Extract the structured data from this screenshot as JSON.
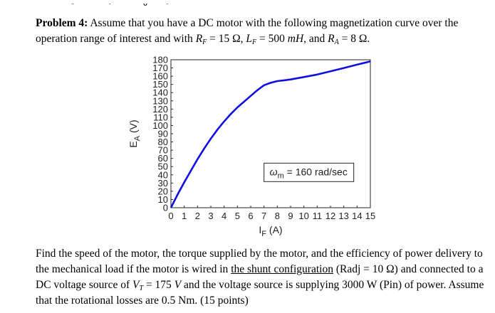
{
  "problem": {
    "label": "Problem 4:",
    "intro": "Assume that you have a DC motor with the following magnetization curve over the operation range of interest and with",
    "rf_sym": "R",
    "rf_sub": "F",
    "rf_val": " = 15 Ω,",
    "lf_sym": "L",
    "lf_sub": "F",
    "lf_val": " = 500 ",
    "lf_unit": "mH",
    "and": ", and",
    "ra_sym": "R",
    "ra_sub": "A",
    "ra_val": " = 8 Ω."
  },
  "question": {
    "t1": "Find the speed of the motor, the torque supplied by the motor, and the efficiency of power delivery to the mechanical load if the motor is wired in",
    "shunt": "the shunt configuration",
    "radj": " (Radj = 10 Ω) and connected to a DC voltage source of",
    "vt_sym": "V",
    "vt_sub": "T",
    "vt_val": " = 175 ",
    "vt_unit": "V",
    "t2": " and the voltage source is supplying 3000 W (Pin) of power. Assume that the rotational losses are 0.5 Nm. (15 points)"
  },
  "chart_data": {
    "type": "line",
    "x": [
      0,
      0.5,
      1,
      1.5,
      2,
      2.5,
      3,
      3.5,
      4,
      4.5,
      5,
      5.5,
      6,
      6.5,
      7,
      7.5,
      8,
      8.5,
      9,
      10,
      11,
      12,
      13,
      14,
      15
    ],
    "y": [
      0,
      16,
      31,
      45,
      59,
      72,
      84,
      95,
      105,
      114,
      122,
      129,
      136,
      143,
      149,
      152,
      154,
      155,
      156,
      159,
      162,
      166,
      170,
      174,
      178
    ],
    "xlabel": "I",
    "xlabel_sub": "F",
    "xlabel_unit": " (A)",
    "ylabel": "E",
    "ylabel_sub": "A",
    "ylabel_unit": " (V)",
    "xlim": [
      0,
      15
    ],
    "ylim": [
      0,
      180
    ],
    "xticks": [
      0,
      1,
      2,
      3,
      4,
      5,
      6,
      7,
      8,
      9,
      10,
      11,
      12,
      13,
      14,
      15
    ],
    "yticks": [
      0,
      10,
      20,
      30,
      40,
      50,
      60,
      70,
      80,
      90,
      100,
      110,
      120,
      130,
      140,
      150,
      160,
      170,
      180
    ],
    "grid": false,
    "line_color": "#1010e0",
    "annotation": {
      "sym": "ω",
      "sub": "m",
      "text": " = 160 rad/sec",
      "x": 7.0,
      "y": 43
    }
  }
}
